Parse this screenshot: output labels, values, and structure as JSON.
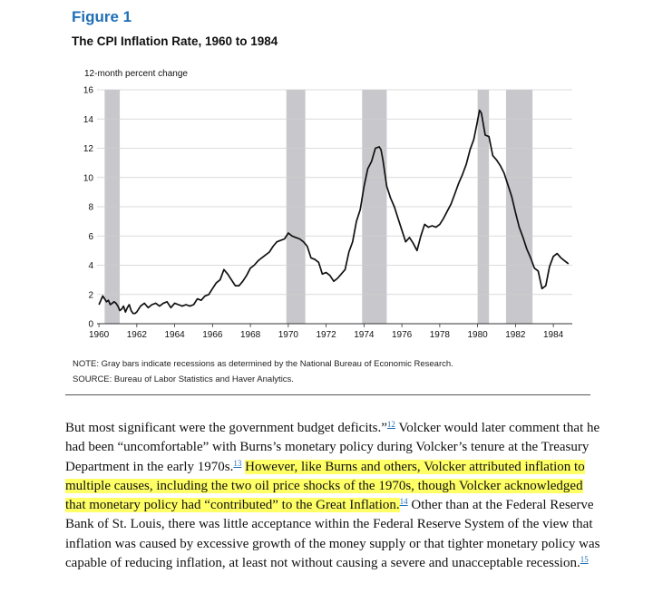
{
  "figure": {
    "label": "Figure 1",
    "title": "The CPI Inflation Rate, 1960 to 1984",
    "note": "NOTE: Gray bars indicate recessions as determined by the National Bureau of Economic Research.",
    "source": "SOURCE: Bureau of Labor Statistics and Haver Analytics."
  },
  "chart_data": {
    "type": "line",
    "title": "The CPI Inflation Rate, 1960 to 1984",
    "ylabel": "12-month percent change",
    "xlabel": "",
    "xlim": [
      1959.9,
      1985.0
    ],
    "ylim": [
      0,
      16
    ],
    "x_ticks": [
      1960,
      1962,
      1964,
      1966,
      1968,
      1970,
      1972,
      1974,
      1976,
      1978,
      1980,
      1982,
      1984
    ],
    "y_ticks": [
      0,
      2,
      4,
      6,
      8,
      10,
      12,
      14,
      16
    ],
    "grid": true,
    "recessions": [
      [
        1960.3,
        1961.1
      ],
      [
        1969.9,
        1970.9
      ],
      [
        1973.9,
        1975.2
      ],
      [
        1980.0,
        1980.6
      ],
      [
        1981.5,
        1982.9
      ]
    ],
    "colors": {
      "line": "#111111",
      "recession": "#c8c8cc",
      "grid": "#cfcfcf"
    },
    "series": [
      {
        "x": [
          1960.0,
          1960.1,
          1960.2,
          1960.3,
          1960.4,
          1960.5,
          1960.6,
          1960.7,
          1960.8,
          1960.9,
          1961.0,
          1961.1,
          1961.2,
          1961.3,
          1961.4,
          1961.5,
          1961.6,
          1961.7,
          1961.8,
          1961.9,
          1962.0,
          1962.2,
          1962.4,
          1962.6,
          1962.8,
          1963.0,
          1963.2,
          1963.4,
          1963.6,
          1963.8,
          1964.0,
          1964.2,
          1964.4,
          1964.6,
          1964.8,
          1965.0,
          1965.2,
          1965.4,
          1965.6,
          1965.8,
          1966.0,
          1966.2,
          1966.4,
          1966.6,
          1966.8,
          1967.0,
          1967.2,
          1967.4,
          1967.6,
          1967.8,
          1968.0,
          1968.2,
          1968.4,
          1968.6,
          1968.8,
          1969.0,
          1969.2,
          1969.4,
          1969.6,
          1969.8,
          1970.0,
          1970.2,
          1970.4,
          1970.6,
          1970.8,
          1971.0,
          1971.2,
          1971.4,
          1971.6,
          1971.8,
          1972.0,
          1972.2,
          1972.4,
          1972.6,
          1972.8,
          1973.0,
          1973.2,
          1973.4,
          1973.6,
          1973.8,
          1974.0,
          1974.2,
          1974.4,
          1974.6,
          1974.8,
          1974.9,
          1975.0,
          1975.2,
          1975.4,
          1975.6,
          1975.8,
          1976.0,
          1976.2,
          1976.4,
          1976.6,
          1976.8,
          1977.0,
          1977.2,
          1977.4,
          1977.6,
          1977.8,
          1978.0,
          1978.2,
          1978.4,
          1978.6,
          1978.8,
          1979.0,
          1979.2,
          1979.4,
          1979.6,
          1979.8,
          1980.0,
          1980.1,
          1980.2,
          1980.4,
          1980.6,
          1980.8,
          1981.0,
          1981.2,
          1981.4,
          1981.6,
          1981.8,
          1982.0,
          1982.2,
          1982.4,
          1982.6,
          1982.8,
          1983.0,
          1983.2,
          1983.4,
          1983.6,
          1983.8,
          1984.0,
          1984.2,
          1984.4,
          1984.6,
          1984.8
        ],
        "y": [
          1.3,
          1.6,
          1.9,
          1.7,
          1.5,
          1.6,
          1.3,
          1.4,
          1.5,
          1.4,
          1.2,
          0.9,
          1.0,
          1.2,
          0.8,
          1.1,
          1.3,
          0.9,
          0.7,
          0.7,
          0.8,
          1.2,
          1.4,
          1.1,
          1.3,
          1.4,
          1.2,
          1.4,
          1.5,
          1.1,
          1.4,
          1.3,
          1.2,
          1.3,
          1.2,
          1.3,
          1.7,
          1.6,
          1.9,
          2.0,
          2.4,
          2.8,
          3.0,
          3.7,
          3.4,
          3.0,
          2.6,
          2.6,
          2.9,
          3.3,
          3.8,
          4.0,
          4.3,
          4.5,
          4.7,
          4.9,
          5.3,
          5.6,
          5.7,
          5.8,
          6.2,
          6.0,
          5.9,
          5.8,
          5.6,
          5.3,
          4.5,
          4.4,
          4.2,
          3.4,
          3.5,
          3.3,
          2.9,
          3.1,
          3.4,
          3.7,
          4.9,
          5.6,
          7.0,
          7.8,
          9.4,
          10.6,
          11.1,
          12.0,
          12.1,
          11.9,
          11.2,
          9.4,
          8.6,
          8.0,
          7.2,
          6.4,
          5.6,
          5.9,
          5.5,
          5.0,
          6.0,
          6.8,
          6.6,
          6.7,
          6.6,
          6.8,
          7.2,
          7.7,
          8.2,
          8.9,
          9.6,
          10.2,
          10.9,
          11.9,
          12.6,
          13.9,
          14.6,
          14.4,
          12.9,
          12.8,
          11.5,
          11.2,
          10.8,
          10.3,
          9.5,
          8.7,
          7.6,
          6.6,
          5.9,
          5.1,
          4.5,
          3.8,
          3.6,
          2.4,
          2.6,
          3.9,
          4.6,
          4.8,
          4.5,
          4.3,
          4.1
        ]
      }
    ]
  },
  "body": {
    "p1": "But most significant were the government budget deficits.”",
    "fn12": "12",
    "p2": " Volcker would later comment that he had been “uncomfortable” with Burns’s monetary policy during Volcker’s tenure at the Treasury Department in the early 1970s.",
    "fn13": "13",
    "p3": " ",
    "highlight": "However, like Burns and others, Volcker attributed inflation to multiple causes, including the two oil price shocks of the 1970s, though Volcker acknowledged that monetary policy had “contributed” to the Great Inflation.",
    "fn14": "14",
    "p4": " Other than at the Federal Reserve Bank of St. Louis, there was little acceptance within the Federal Reserve System of the view that inflation was caused by excessive growth of the money supply or that tighter monetary policy was capable of reducing inflation, at least not without causing a severe and unacceptable recession.",
    "fn15": "15"
  }
}
